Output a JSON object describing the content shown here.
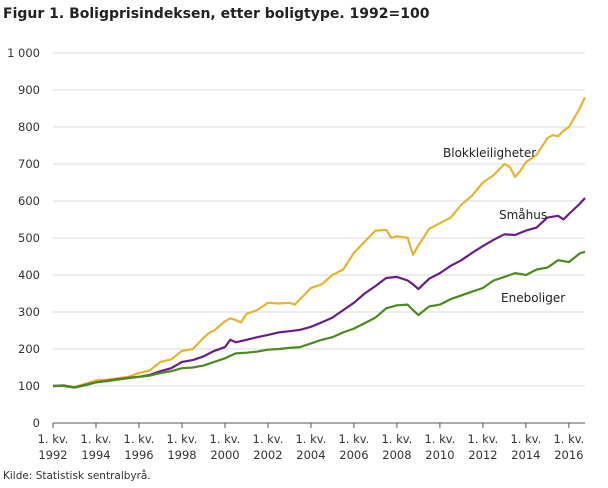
{
  "title": "Figur 1. Boligprisindeksen, etter boligtype. 1992=100",
  "source": "Kilde: Statistisk sentralbyrå.",
  "chart_data": {
    "type": "line",
    "title": "Figur 1. Boligprisindeksen, etter boligtype. 1992=100",
    "xlabel": "",
    "ylabel": "",
    "ylim": [
      0,
      1000
    ],
    "yticks": [
      0,
      100,
      200,
      300,
      400,
      500,
      600,
      700,
      800,
      900,
      1000
    ],
    "ytick_labels": [
      "0",
      "100",
      "200",
      "300",
      "400",
      "500",
      "600",
      "700",
      "800",
      "900",
      "1 000"
    ],
    "xlim": [
      1992,
      2016.75
    ],
    "xticks": [
      1992,
      1994,
      1996,
      1998,
      2000,
      2002,
      2004,
      2006,
      2008,
      2010,
      2012,
      2014,
      2016
    ],
    "xtick_line1": "1. kv.",
    "xtick_labels": [
      "1992",
      "1994",
      "1996",
      "1998",
      "2000",
      "2002",
      "2004",
      "2006",
      "2008",
      "2010",
      "2012",
      "2014",
      "2016"
    ],
    "grid": "horizontal",
    "legend": "inline labels",
    "series": [
      {
        "name": "Blokkleiligheter",
        "color": "#e8b430",
        "x": [
          1992,
          1992.5,
          1993,
          1993.5,
          1994,
          1994.5,
          1995,
          1995.5,
          1996,
          1996.5,
          1997,
          1997.5,
          1998,
          1998.5,
          1999,
          1999.25,
          1999.5,
          2000,
          2000.25,
          2000.5,
          2000.75,
          2001,
          2001.5,
          2002,
          2002.5,
          2003,
          2003.25,
          2003.5,
          2004,
          2004.5,
          2005,
          2005.5,
          2006,
          2006.5,
          2007,
          2007.5,
          2007.75,
          2008,
          2008.5,
          2008.75,
          2009,
          2009.5,
          2010,
          2010.5,
          2011,
          2011.5,
          2012,
          2012.5,
          2013,
          2013.25,
          2013.5,
          2013.75,
          2014,
          2014.5,
          2015,
          2015.25,
          2015.5,
          2015.75,
          2016,
          2016.25,
          2016.5,
          2016.75
        ],
        "values": [
          100,
          102,
          97,
          106,
          115,
          117,
          121,
          125,
          135,
          142,
          165,
          172,
          195,
          200,
          230,
          243,
          250,
          275,
          283,
          278,
          272,
          295,
          305,
          325,
          323,
          325,
          320,
          335,
          365,
          375,
          400,
          415,
          460,
          490,
          520,
          522,
          500,
          505,
          500,
          455,
          480,
          525,
          540,
          555,
          590,
          615,
          650,
          670,
          700,
          692,
          665,
          682,
          705,
          725,
          770,
          778,
          775,
          790,
          800,
          825,
          850,
          880
        ]
      },
      {
        "name": "Småhus",
        "color": "#6a1c8c",
        "x": [
          1992,
          1992.5,
          1993,
          1993.5,
          1994,
          1994.5,
          1995,
          1995.5,
          1996,
          1996.5,
          1997,
          1997.5,
          1998,
          1998.5,
          1999,
          1999.5,
          2000,
          2000.25,
          2000.5,
          2001,
          2001.5,
          2002,
          2002.5,
          2003,
          2003.5,
          2004,
          2004.5,
          2005,
          2005.5,
          2006,
          2006.5,
          2007,
          2007.5,
          2008,
          2008.5,
          2008.75,
          2009,
          2009.5,
          2010,
          2010.5,
          2011,
          2011.5,
          2012,
          2012.5,
          2013,
          2013.5,
          2014,
          2014.5,
          2015,
          2015.5,
          2015.75,
          2016,
          2016.5,
          2016.75
        ],
        "values": [
          100,
          101,
          96,
          103,
          110,
          114,
          118,
          122,
          125,
          130,
          140,
          148,
          165,
          170,
          180,
          195,
          205,
          225,
          218,
          225,
          232,
          238,
          245,
          248,
          252,
          260,
          272,
          285,
          305,
          325,
          350,
          370,
          392,
          395,
          385,
          375,
          362,
          390,
          405,
          425,
          440,
          460,
          478,
          495,
          510,
          508,
          520,
          528,
          555,
          560,
          550,
          565,
          592,
          608
        ]
      },
      {
        "name": "Eneboliger",
        "color": "#4b8b1d",
        "x": [
          1992,
          1992.5,
          1993,
          1993.5,
          1994,
          1994.5,
          1995,
          1995.5,
          1996,
          1996.5,
          1997,
          1997.5,
          1998,
          1998.5,
          1999,
          1999.5,
          2000,
          2000.5,
          2001,
          2001.5,
          2002,
          2002.5,
          2003,
          2003.5,
          2004,
          2004.5,
          2005,
          2005.5,
          2006,
          2006.5,
          2007,
          2007.5,
          2008,
          2008.5,
          2008.75,
          2009,
          2009.5,
          2010,
          2010.5,
          2011,
          2011.5,
          2012,
          2012.5,
          2013,
          2013.5,
          2014,
          2014.5,
          2015,
          2015.5,
          2016,
          2016.5,
          2016.75
        ],
        "values": [
          100,
          100,
          96,
          102,
          110,
          113,
          117,
          121,
          125,
          128,
          135,
          140,
          148,
          150,
          155,
          165,
          175,
          188,
          190,
          193,
          198,
          200,
          203,
          205,
          215,
          225,
          232,
          245,
          255,
          270,
          285,
          310,
          318,
          320,
          305,
          292,
          315,
          320,
          335,
          345,
          355,
          365,
          385,
          395,
          405,
          400,
          415,
          420,
          440,
          435,
          458,
          463
        ]
      }
    ]
  }
}
